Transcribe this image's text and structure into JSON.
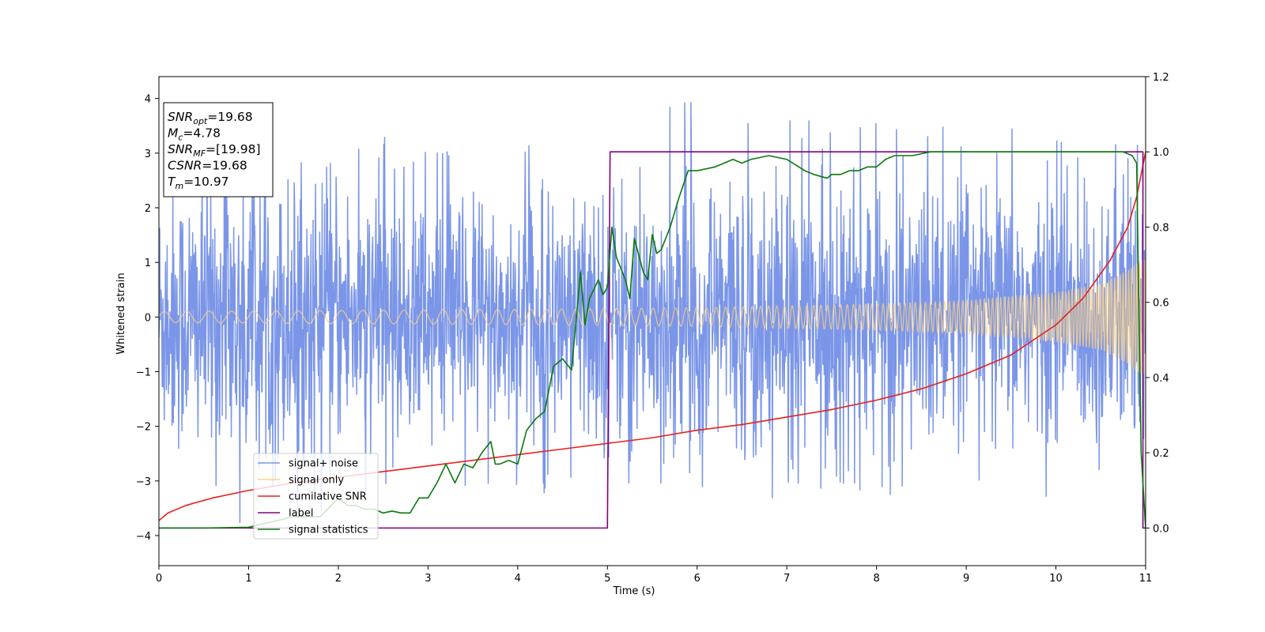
{
  "chart_data": {
    "type": "line",
    "xlabel": "Time (s)",
    "ylabel": "Whitened strain",
    "y2label": "",
    "xlim": [
      0,
      11
    ],
    "ylim": [
      -4.55,
      4.4
    ],
    "y2lim": [
      -0.1,
      1.2
    ],
    "xticks": [
      0,
      1,
      2,
      3,
      4,
      5,
      6,
      7,
      8,
      9,
      10,
      11
    ],
    "yticks": [
      -4,
      -3,
      -2,
      -1,
      0,
      1,
      2,
      3,
      4
    ],
    "y2ticks": [
      "0.0",
      "0.2",
      "0.4",
      "0.6",
      "0.8",
      "1.0",
      "1.2"
    ],
    "grid": false,
    "legend_position": "lower-left",
    "info_box": {
      "position": "top-left",
      "lines": [
        {
          "name": "SNR",
          "sub": "opt",
          "value": "=19.68"
        },
        {
          "name": "M",
          "sub": "c",
          "value": "=4.78"
        },
        {
          "name": "SNR",
          "sub": "MF",
          "value": "=[19.98]"
        },
        {
          "name": "CSNR",
          "sub": "",
          "value": "=19.68"
        },
        {
          "name": "T",
          "sub": "m",
          "value": "=10.97"
        }
      ]
    },
    "series": [
      {
        "name": "signal+ noise",
        "color": "#7b96e8",
        "axis": "left",
        "style": "noise",
        "envelope_t": [
          0,
          1,
          2,
          3,
          4,
          5,
          6,
          7,
          8,
          9,
          10,
          10.5,
          10.9,
          11
        ],
        "envelope_max": [
          3.4,
          3.5,
          3.4,
          3.2,
          3.1,
          3.5,
          4.0,
          3.6,
          3.6,
          3.5,
          3.4,
          3.4,
          3.5,
          3.5
        ],
        "envelope_min": [
          -3.5,
          -4.2,
          -3.4,
          -3.5,
          -3.2,
          -3.3,
          -3.4,
          -3.3,
          -3.4,
          -3.2,
          -3.3,
          -3.6,
          -3.8,
          -3.5
        ]
      },
      {
        "name": "signal only",
        "color": "#ffd27f",
        "axis": "left",
        "style": "chirp",
        "envelope_t": [
          0,
          2,
          4,
          6,
          8,
          9,
          10,
          10.5,
          10.8,
          10.95,
          11
        ],
        "amplitude": [
          0.1,
          0.12,
          0.14,
          0.17,
          0.24,
          0.3,
          0.45,
          0.6,
          0.85,
          1.05,
          1.05
        ]
      },
      {
        "name": "cumilative SNR",
        "color": "#e8201a",
        "axis": "right",
        "x": [
          0,
          0.1,
          0.3,
          0.6,
          1,
          1.5,
          2,
          2.5,
          3,
          3.5,
          4,
          4.5,
          5,
          5.5,
          6,
          6.5,
          7,
          7.5,
          8,
          8.5,
          9,
          9.5,
          10,
          10.3,
          10.6,
          10.8,
          10.9,
          11
        ],
        "y": [
          0.02,
          0.04,
          0.06,
          0.08,
          0.1,
          0.12,
          0.135,
          0.15,
          0.165,
          0.18,
          0.195,
          0.21,
          0.225,
          0.24,
          0.26,
          0.275,
          0.295,
          0.315,
          0.34,
          0.37,
          0.41,
          0.46,
          0.54,
          0.61,
          0.71,
          0.8,
          0.88,
          1.0
        ]
      },
      {
        "name": "label",
        "color": "#800080",
        "axis": "right",
        "x": [
          0,
          5,
          5.03,
          10.97,
          10.97,
          11
        ],
        "y": [
          0,
          0,
          1,
          1,
          0,
          0
        ]
      },
      {
        "name": "signal statistics",
        "color": "#0a7a0a",
        "axis": "right",
        "x": [
          0,
          0.5,
          1,
          1.5,
          1.8,
          2,
          2.1,
          2.2,
          2.3,
          2.4,
          2.5,
          2.6,
          2.7,
          2.8,
          2.9,
          3,
          3.1,
          3.2,
          3.3,
          3.4,
          3.5,
          3.6,
          3.7,
          3.75,
          3.8,
          3.9,
          4,
          4.1,
          4.2,
          4.3,
          4.4,
          4.5,
          4.6,
          4.7,
          4.75,
          4.8,
          4.9,
          4.95,
          5,
          5.05,
          5.1,
          5.2,
          5.25,
          5.3,
          5.4,
          5.45,
          5.5,
          5.55,
          5.6,
          5.7,
          5.8,
          5.9,
          6,
          6.2,
          6.4,
          6.5,
          6.6,
          6.8,
          7,
          7.2,
          7.3,
          7.45,
          7.5,
          7.6,
          7.7,
          7.8,
          7.9,
          8,
          8.1,
          8.2,
          8.4,
          8.6,
          8.8,
          9,
          9.5,
          10,
          10.5,
          10.75,
          10.85,
          10.9,
          10.95,
          11
        ],
        "y": [
          0.0,
          0.0,
          0.002,
          0.03,
          0.03,
          0.08,
          0.06,
          0.06,
          0.05,
          0.05,
          0.04,
          0.045,
          0.04,
          0.04,
          0.08,
          0.08,
          0.12,
          0.17,
          0.12,
          0.17,
          0.16,
          0.2,
          0.23,
          0.17,
          0.17,
          0.18,
          0.17,
          0.26,
          0.29,
          0.31,
          0.43,
          0.45,
          0.42,
          0.68,
          0.54,
          0.61,
          0.66,
          0.62,
          0.64,
          0.8,
          0.72,
          0.66,
          0.61,
          0.77,
          0.68,
          0.66,
          0.78,
          0.73,
          0.74,
          0.8,
          0.88,
          0.95,
          0.95,
          0.96,
          0.98,
          0.97,
          0.98,
          0.99,
          0.98,
          0.95,
          0.94,
          0.93,
          0.94,
          0.94,
          0.95,
          0.95,
          0.96,
          0.96,
          0.98,
          0.99,
          0.99,
          1.0,
          1.0,
          1.0,
          1.0,
          1.0,
          1.0,
          1.0,
          0.99,
          0.97,
          0.2,
          0.0
        ]
      }
    ]
  }
}
